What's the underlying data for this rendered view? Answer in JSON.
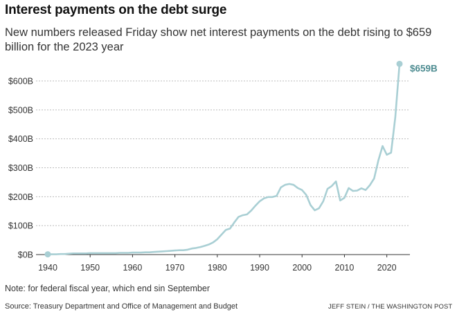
{
  "header": {
    "title": "Interest payments on the debt surge",
    "subtitle": "New numbers released Friday show net interest payments on the debt rising to $659 billion for the 2023 year"
  },
  "footer": {
    "note": "Note: for federal fiscal year, which end sin September",
    "source": "Source: Treasury Department and Office of Management and Budget",
    "credit": "JEFF STEIN / THE WASHINGTON POST"
  },
  "colors": {
    "line": "#a9cfd4",
    "end_marker": "#a9cfd4",
    "end_label": "#4e8c91",
    "grid": "#bbbbbb",
    "axis": "#333333"
  },
  "chart_data": {
    "type": "line",
    "title": "Interest payments on the debt surge",
    "xlabel": "",
    "ylabel": "",
    "xlim": [
      1940,
      2023
    ],
    "ylim": [
      0,
      600
    ],
    "x_ticks": [
      1940,
      1950,
      1960,
      1970,
      1980,
      1990,
      2000,
      2010,
      2020
    ],
    "y_ticks": [
      {
        "value": 0,
        "label": "$0B"
      },
      {
        "value": 100,
        "label": "$100B"
      },
      {
        "value": 200,
        "label": "$200B"
      },
      {
        "value": 300,
        "label": "$300B"
      },
      {
        "value": 400,
        "label": "$400B"
      },
      {
        "value": 500,
        "label": "$500B"
      },
      {
        "value": 600,
        "label": "$600B"
      }
    ],
    "grid": "horizontal dashed",
    "end_annotation": {
      "x": 2023,
      "y": 659,
      "label": "$659B"
    },
    "series": [
      {
        "x": [
          1940,
          1941,
          1942,
          1943,
          1944,
          1945,
          1946,
          1947,
          1948,
          1949,
          1950,
          1951,
          1952,
          1953,
          1954,
          1955,
          1956,
          1957,
          1958,
          1959,
          1960,
          1961,
          1962,
          1963,
          1964,
          1965,
          1966,
          1967,
          1968,
          1969,
          1970,
          1971,
          1972,
          1973,
          1974,
          1975,
          1976,
          1977,
          1978,
          1979,
          1980,
          1981,
          1982,
          1983,
          1984,
          1985,
          1986,
          1987,
          1988,
          1989,
          1990,
          1991,
          1992,
          1993,
          1994,
          1995,
          1996,
          1997,
          1998,
          1999,
          2000,
          2001,
          2002,
          2003,
          2004,
          2005,
          2006,
          2007,
          2008,
          2009,
          2010,
          2011,
          2012,
          2013,
          2014,
          2015,
          2016,
          2017,
          2018,
          2019,
          2020,
          2021,
          2022,
          2023
        ],
        "values": [
          1,
          1,
          1,
          2,
          2,
          3,
          4,
          4,
          4,
          4,
          5,
          5,
          5,
          5,
          5,
          5,
          5,
          6,
          6,
          6,
          7,
          7,
          7,
          8,
          8,
          9,
          10,
          11,
          12,
          13,
          14,
          15,
          15,
          17,
          21,
          23,
          26,
          30,
          35,
          42,
          53,
          69,
          85,
          90,
          111,
          130,
          136,
          139,
          152,
          169,
          184,
          194,
          199,
          199,
          203,
          232,
          241,
          244,
          241,
          230,
          223,
          206,
          171,
          153,
          160,
          184,
          227,
          237,
          253,
          187,
          196,
          230,
          220,
          221,
          229,
          223,
          240,
          263,
          325,
          375,
          345,
          352,
          475,
          659
        ]
      }
    ]
  }
}
